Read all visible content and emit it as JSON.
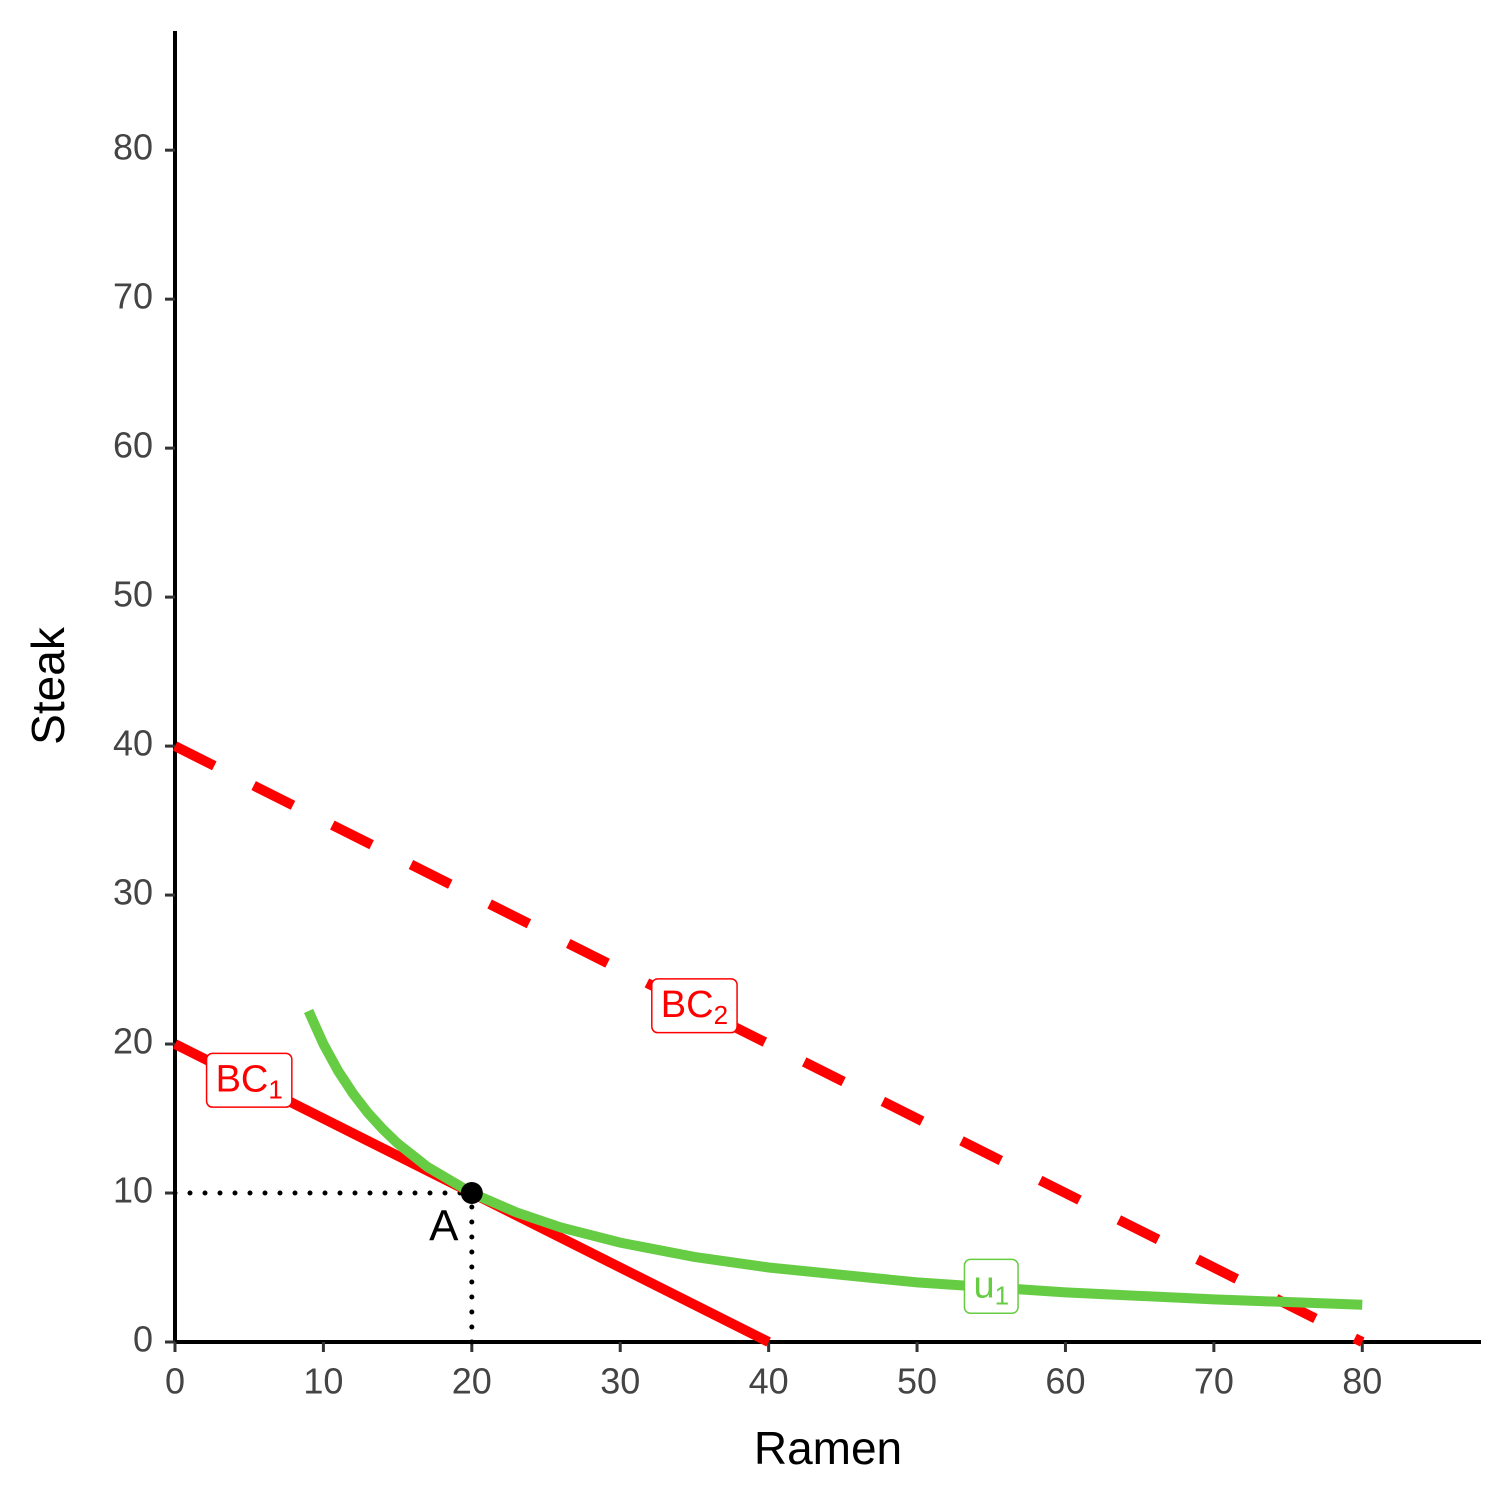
{
  "chart_data": {
    "type": "line",
    "xlabel": "Ramen",
    "ylabel": "Steak",
    "xlim": [
      0,
      88
    ],
    "ylim": [
      0,
      88
    ],
    "xticks": [
      0,
      10,
      20,
      30,
      40,
      50,
      60,
      70,
      80
    ],
    "yticks": [
      0,
      10,
      20,
      30,
      40,
      50,
      60,
      70,
      80
    ],
    "series": [
      {
        "name": "BC",
        "subscript": "1",
        "color": "#ff0000",
        "style": "solid",
        "x": [
          0,
          40
        ],
        "values": [
          20,
          0
        ]
      },
      {
        "name": "BC",
        "subscript": "2",
        "color": "#ff0000",
        "style": "dashed",
        "x": [
          0,
          80
        ],
        "values": [
          40,
          0
        ]
      },
      {
        "name": "u",
        "subscript": "1",
        "color": "#66cc44",
        "style": "solid",
        "x": [
          9,
          10,
          11,
          12,
          13,
          14,
          15,
          17,
          20,
          23,
          26,
          30,
          35,
          40,
          50,
          60,
          70,
          80
        ],
        "values": [
          22.22,
          20,
          18.18,
          16.67,
          15.38,
          14.29,
          13.33,
          11.76,
          10,
          8.7,
          7.69,
          6.67,
          5.71,
          5,
          4,
          3.33,
          2.86,
          2.5
        ]
      }
    ],
    "points": [
      {
        "name": "A",
        "x": 20,
        "y": 10,
        "color": "#000000"
      }
    ]
  }
}
